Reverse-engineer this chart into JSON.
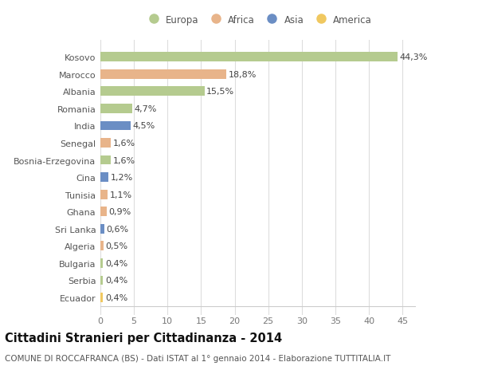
{
  "categories": [
    "Kosovo",
    "Marocco",
    "Albania",
    "Romania",
    "India",
    "Senegal",
    "Bosnia-Erzegovina",
    "Cina",
    "Tunisia",
    "Ghana",
    "Sri Lanka",
    "Algeria",
    "Bulgaria",
    "Serbia",
    "Ecuador"
  ],
  "values": [
    44.3,
    18.8,
    15.5,
    4.7,
    4.5,
    1.6,
    1.6,
    1.2,
    1.1,
    0.9,
    0.6,
    0.5,
    0.4,
    0.4,
    0.4
  ],
  "labels": [
    "44,3%",
    "18,8%",
    "15,5%",
    "4,7%",
    "4,5%",
    "1,6%",
    "1,6%",
    "1,2%",
    "1,1%",
    "0,9%",
    "0,6%",
    "0,5%",
    "0,4%",
    "0,4%",
    "0,4%"
  ],
  "continents": [
    "Europa",
    "Africa",
    "Europa",
    "Europa",
    "Asia",
    "Africa",
    "Europa",
    "Asia",
    "Africa",
    "Africa",
    "Asia",
    "Africa",
    "Europa",
    "Europa",
    "America"
  ],
  "colors": {
    "Europa": "#b5cb8f",
    "Africa": "#e8b48a",
    "Asia": "#6b8ec4",
    "America": "#f0c860"
  },
  "title": "Cittadini Stranieri per Cittadinanza - 2014",
  "subtitle": "COMUNE DI ROCCAFRANCA (BS) - Dati ISTAT al 1° gennaio 2014 - Elaborazione TUTTITALIA.IT",
  "xlim": [
    0,
    47
  ],
  "xticks": [
    0,
    5,
    10,
    15,
    20,
    25,
    30,
    35,
    40,
    45
  ],
  "background_color": "#ffffff",
  "plot_bg_color": "#ffffff",
  "grid_color": "#dddddd",
  "title_fontsize": 10.5,
  "subtitle_fontsize": 7.5,
  "label_fontsize": 8,
  "tick_fontsize": 8,
  "bar_height": 0.55
}
